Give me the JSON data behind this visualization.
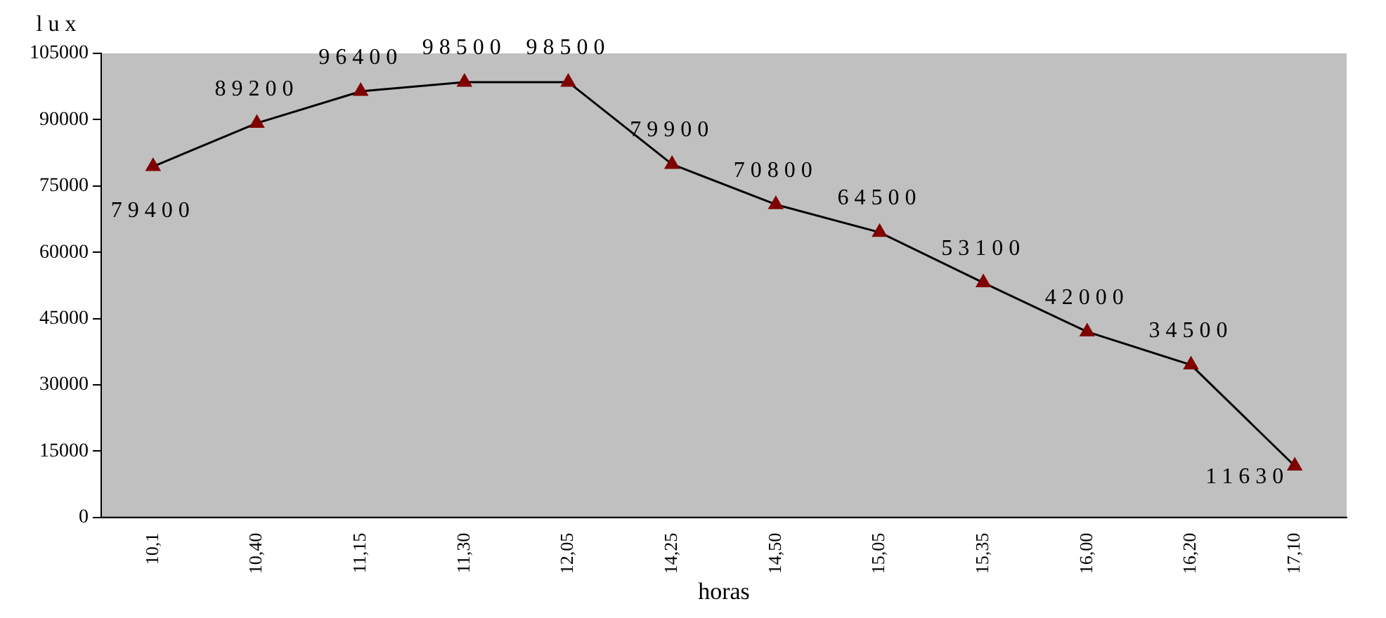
{
  "chart_data": {
    "type": "line",
    "xlabel": "horas",
    "ylabel": "lux",
    "categories": [
      "10,1",
      "10,40",
      "11,15",
      "11,30",
      "12,05",
      "14,25",
      "14,50",
      "15,05",
      "15,35",
      "16,00",
      "16,20",
      "17,10"
    ],
    "series": [
      {
        "color": "#800000",
        "values": [
          79400,
          89200,
          96400,
          98500,
          98500,
          79900,
          70800,
          64500,
          53100,
          42000,
          34500,
          11630
        ]
      }
    ],
    "ylim": [
      0,
      105000
    ],
    "yticks": [
      0,
      15000,
      30000,
      45000,
      60000,
      75000,
      90000,
      105000
    ],
    "grid": false,
    "legend": false,
    "marker": "triangle",
    "line_style": "solid",
    "data_labels": true
  }
}
